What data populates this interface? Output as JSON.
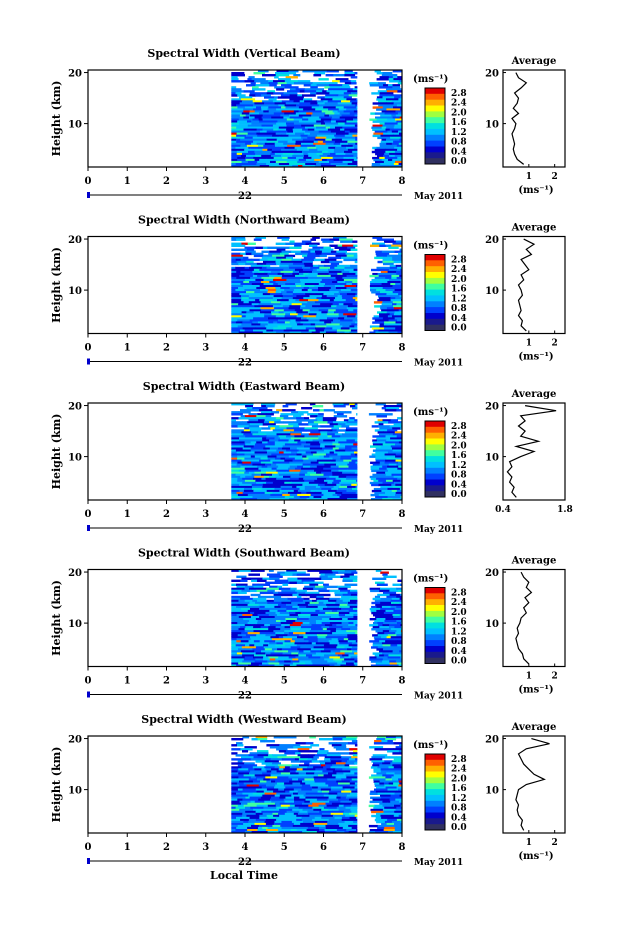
{
  "figure": {
    "xlabel_bottom": "Local Time",
    "cbar_ticks": [
      "2.8",
      "2.4",
      "2.0",
      "1.6",
      "1.2",
      "0.8",
      "0.4",
      "0.0"
    ],
    "colors": {
      "ramp": [
        "#1a1a8c",
        "#0000cd",
        "#0040ff",
        "#0080ff",
        "#00c0ff",
        "#00e0e0",
        "#40ffa0",
        "#a0ff40",
        "#ffff00",
        "#ffb000",
        "#ff6000",
        "#e00000"
      ],
      "cbar_bottom": "#303060",
      "axis": "#000000",
      "date_marker": "#0000cc"
    }
  },
  "chart_data": [
    {
      "type": "heatmap",
      "title": "Spectral Width (Vertical Beam)",
      "ylabel": "Height (km)",
      "x_ticks": [
        "0",
        "1",
        "2",
        "3",
        "4",
        "5",
        "6",
        "7",
        "8"
      ],
      "y_ticks": [
        "20",
        "10"
      ],
      "date_label": "22",
      "month_label": "May 2011",
      "cbar_unit": "(ms⁻¹)",
      "xlim": [
        0,
        8
      ],
      "ylim": [
        1.5,
        20.5
      ],
      "data_x_start": 3.65,
      "gap": [
        6.85,
        7.15
      ],
      "seed": 11,
      "profile": {
        "title": "Average",
        "xlabel": "(ms⁻¹)",
        "xlim": [
          0,
          2.4
        ],
        "x_ticks": [
          "1",
          "2"
        ],
        "x_tick_values": [
          1,
          2
        ],
        "y_ticks": [
          "20",
          "10"
        ],
        "height": [
          2,
          3,
          4,
          5,
          6,
          7,
          8,
          9,
          10,
          11,
          12,
          13,
          14,
          15,
          16,
          17,
          18,
          19,
          20
        ],
        "value": [
          0.8,
          0.55,
          0.45,
          0.4,
          0.45,
          0.4,
          0.35,
          0.45,
          0.5,
          0.35,
          0.6,
          0.4,
          0.55,
          0.6,
          0.45,
          0.7,
          0.9,
          0.6,
          0.5
        ]
      }
    },
    {
      "type": "heatmap",
      "title": "Spectral Width (Northward Beam)",
      "ylabel": "Height (km)",
      "x_ticks": [
        "0",
        "1",
        "2",
        "3",
        "4",
        "5",
        "6",
        "7",
        "8"
      ],
      "y_ticks": [
        "20",
        "10"
      ],
      "date_label": "22",
      "month_label": "May 2011",
      "cbar_unit": "(ms⁻¹)",
      "xlim": [
        0,
        8
      ],
      "ylim": [
        1.5,
        20.5
      ],
      "data_x_start": 3.65,
      "gap": [
        6.85,
        7.15
      ],
      "seed": 23,
      "profile": {
        "title": "Average",
        "xlabel": "(ms⁻¹)",
        "xlim": [
          0,
          2.4
        ],
        "x_ticks": [
          "1",
          "2"
        ],
        "x_tick_values": [
          1,
          2
        ],
        "y_ticks": [
          "20",
          "10"
        ],
        "height": [
          2,
          3,
          4,
          5,
          6,
          7,
          8,
          9,
          10,
          11,
          12,
          13,
          14,
          15,
          16,
          17,
          18,
          19,
          20
        ],
        "value": [
          0.9,
          0.7,
          0.75,
          0.6,
          0.7,
          0.65,
          0.6,
          0.75,
          0.7,
          0.6,
          0.8,
          0.7,
          1.0,
          0.85,
          0.7,
          1.1,
          0.9,
          1.2,
          0.8
        ]
      }
    },
    {
      "type": "heatmap",
      "title": "Spectral Width (Eastward Beam)",
      "ylabel": "Height (km)",
      "x_ticks": [
        "0",
        "1",
        "2",
        "3",
        "4",
        "5",
        "6",
        "7",
        "8"
      ],
      "y_ticks": [
        "20",
        "10"
      ],
      "date_label": "22",
      "month_label": "May 2011",
      "cbar_unit": "(ms⁻¹)",
      "xlim": [
        0,
        8
      ],
      "ylim": [
        1.5,
        20.5
      ],
      "data_x_start": 3.65,
      "gap": [
        6.85,
        7.15
      ],
      "seed": 37,
      "profile": {
        "title": "Average",
        "xlabel": "",
        "xlim": [
          0.4,
          1.8
        ],
        "x_ticks": [
          "0.4",
          "1.8"
        ],
        "x_tick_values": [
          0.4,
          1.8
        ],
        "y_ticks": [
          "20",
          "10"
        ],
        "height": [
          2,
          3,
          4,
          5,
          6,
          7,
          8,
          9,
          10,
          11,
          12,
          13,
          14,
          15,
          16,
          17,
          18,
          19,
          20
        ],
        "value": [
          0.7,
          0.6,
          0.65,
          0.55,
          0.6,
          0.5,
          0.6,
          0.55,
          0.8,
          1.1,
          0.7,
          1.2,
          0.8,
          0.9,
          0.75,
          0.9,
          0.8,
          1.6,
          0.9
        ]
      }
    },
    {
      "type": "heatmap",
      "title": "Spectral Width (Southward Beam)",
      "ylabel": "Height (km)",
      "x_ticks": [
        "0",
        "1",
        "2",
        "3",
        "4",
        "5",
        "6",
        "7",
        "8"
      ],
      "y_ticks": [
        "20",
        "10"
      ],
      "date_label": "22",
      "month_label": "May 2011",
      "cbar_unit": "(ms⁻¹)",
      "xlim": [
        0,
        8
      ],
      "ylim": [
        1.5,
        20.5
      ],
      "data_x_start": 3.65,
      "gap": [
        6.85,
        7.15
      ],
      "seed": 51,
      "profile": {
        "title": "Average",
        "xlabel": "(ms⁻¹)",
        "xlim": [
          0,
          2.4
        ],
        "x_ticks": [
          "1",
          "2"
        ],
        "x_tick_values": [
          1,
          2
        ],
        "y_ticks": [
          "20",
          "10"
        ],
        "height": [
          2,
          3,
          4,
          5,
          6,
          7,
          8,
          9,
          10,
          11,
          12,
          13,
          14,
          15,
          16,
          17,
          18,
          19,
          20
        ],
        "value": [
          1.0,
          0.8,
          0.75,
          0.6,
          0.55,
          0.5,
          0.6,
          0.55,
          0.65,
          0.7,
          0.9,
          0.8,
          1.0,
          0.85,
          1.1,
          0.9,
          1.0,
          0.8,
          0.7
        ]
      }
    },
    {
      "type": "heatmap",
      "title": "Spectral Width (Westward Beam)",
      "ylabel": "Height (km)",
      "x_ticks": [
        "0",
        "1",
        "2",
        "3",
        "4",
        "5",
        "6",
        "7",
        "8"
      ],
      "y_ticks": [
        "20",
        "10"
      ],
      "date_label": "22",
      "month_label": "May 2011",
      "cbar_unit": "(ms⁻¹)",
      "xlim": [
        0,
        8
      ],
      "ylim": [
        1.5,
        20.5
      ],
      "data_x_start": 3.65,
      "gap": [
        6.85,
        7.15
      ],
      "seed": 67,
      "profile": {
        "title": "Average",
        "xlabel": "(ms⁻¹)",
        "xlim": [
          0,
          2.4
        ],
        "x_ticks": [
          "1",
          "2"
        ],
        "x_tick_values": [
          1,
          2
        ],
        "y_ticks": [
          "20",
          "10"
        ],
        "height": [
          2,
          3,
          4,
          5,
          6,
          7,
          8,
          9,
          10,
          11,
          12,
          13,
          14,
          15,
          16,
          17,
          18,
          19,
          20
        ],
        "value": [
          0.8,
          0.7,
          0.75,
          0.6,
          0.55,
          0.6,
          0.5,
          0.55,
          0.6,
          0.9,
          1.6,
          1.2,
          1.0,
          0.8,
          0.7,
          0.6,
          0.9,
          1.8,
          1.1
        ]
      }
    }
  ]
}
